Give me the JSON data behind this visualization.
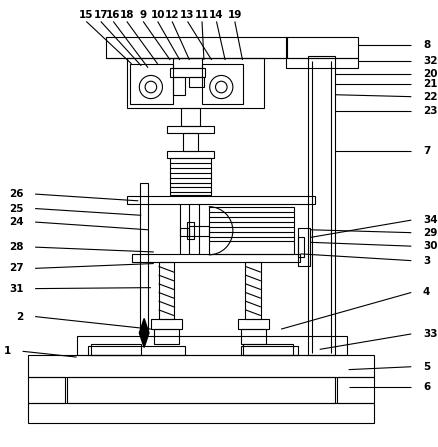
{
  "fig_width": 4.38,
  "fig_height": 4.47,
  "bg_color": "#ffffff",
  "line_color": "#000000",
  "top_labels": [
    [
      "15",
      88,
      14
    ],
    [
      "17",
      103,
      14
    ],
    [
      "16",
      116,
      14
    ],
    [
      "18",
      130,
      14
    ],
    [
      "9",
      147,
      14
    ],
    [
      "10",
      162,
      14
    ],
    [
      "12",
      177,
      14
    ],
    [
      "13",
      193,
      14
    ],
    [
      "11",
      208,
      14
    ],
    [
      "14",
      223,
      14
    ],
    [
      "19",
      242,
      14
    ]
  ],
  "right_labels": [
    [
      "8",
      425,
      38
    ],
    [
      "32",
      425,
      55
    ],
    [
      "20",
      425,
      68
    ],
    [
      "21",
      425,
      79
    ],
    [
      "22",
      425,
      92
    ],
    [
      "23",
      425,
      107
    ],
    [
      "7",
      425,
      148
    ],
    [
      "34",
      425,
      220
    ],
    [
      "29",
      425,
      233
    ],
    [
      "30",
      425,
      247
    ],
    [
      "3",
      425,
      262
    ],
    [
      "4",
      425,
      295
    ],
    [
      "33",
      425,
      338
    ],
    [
      "5",
      425,
      372
    ],
    [
      "6",
      425,
      393
    ]
  ],
  "left_labels": [
    [
      "26",
      35,
      193
    ],
    [
      "25",
      35,
      208
    ],
    [
      "24",
      35,
      222
    ],
    [
      "28",
      35,
      248
    ],
    [
      "27",
      35,
      270
    ],
    [
      "31",
      35,
      291
    ],
    [
      "2",
      35,
      320
    ],
    [
      "1",
      22,
      356
    ]
  ]
}
